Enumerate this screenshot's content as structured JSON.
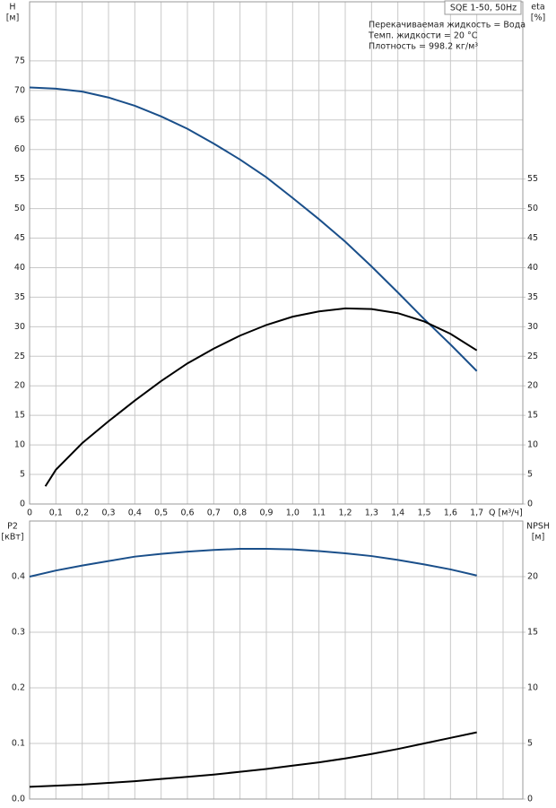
{
  "chart_data": [
    {
      "type": "line",
      "title": "SQE 1-50, 50Hz",
      "annotations": [
        "Перекачиваемая жидкость = Вода",
        "Темп. жидкости = 20 °C",
        "Плотность = 998.2 кг/м³"
      ],
      "ylabel": "H",
      "yunit": "[м]",
      "y2label": "eta",
      "y2unit": "[%]",
      "xlabel": "Q [м³/ч]",
      "xlim": [
        0,
        1.875
      ],
      "xticks": [
        0,
        {
          "value": 0.1,
          "label": "0,1"
        },
        {
          "value": 0.2,
          "label": "0,2"
        },
        {
          "value": 0.3,
          "label": "0,3"
        },
        {
          "value": 0.4,
          "label": "0,4"
        },
        {
          "value": 0.5,
          "label": "0,5"
        },
        {
          "value": 0.6,
          "label": "0,6"
        },
        {
          "value": 0.7,
          "label": "0,7"
        },
        {
          "value": 0.8,
          "label": "0,8"
        },
        {
          "value": 0.9,
          "label": "0,9"
        },
        {
          "value": 1.0,
          "label": "1,0"
        },
        {
          "value": 1.1,
          "label": "1,1"
        },
        {
          "value": 1.2,
          "label": "1,2"
        },
        {
          "value": 1.3,
          "label": "1,3"
        },
        {
          "value": 1.4,
          "label": "1,4"
        },
        {
          "value": 1.5,
          "label": "1,5"
        },
        {
          "value": 1.6,
          "label": "1,6"
        },
        {
          "value": 1.7,
          "label": "1,7"
        }
      ],
      "ylim": [
        0,
        85
      ],
      "yticks": [
        0,
        5,
        10,
        15,
        20,
        25,
        30,
        35,
        40,
        45,
        50,
        55,
        60,
        65,
        70,
        75
      ],
      "y2lim": [
        0,
        85
      ],
      "y2ticks": [
        0,
        5,
        10,
        15,
        20,
        25,
        30,
        35,
        40,
        45,
        50,
        55
      ],
      "grid": true,
      "series": [
        {
          "color": "#1a4f8a",
          "x": [
            0,
            0.1,
            0.2,
            0.3,
            0.4,
            0.5,
            0.6,
            0.7,
            0.8,
            0.9,
            1.0,
            1.1,
            1.2,
            1.3,
            1.4,
            1.5,
            1.6,
            1.7
          ],
          "values": [
            70.5,
            70.3,
            69.8,
            68.8,
            67.4,
            65.6,
            63.5,
            61,
            58.3,
            55.3,
            51.8,
            48.2,
            44.4,
            40.2,
            35.8,
            31.3,
            27,
            22.5
          ]
        },
        {
          "color": "#000000",
          "axis": "y2",
          "x": [
            0.06,
            0.1,
            0.2,
            0.3,
            0.4,
            0.5,
            0.6,
            0.7,
            0.8,
            0.9,
            1.0,
            1.1,
            1.2,
            1.3,
            1.4,
            1.5,
            1.6,
            1.7
          ],
          "values": [
            3,
            5.8,
            10.3,
            14,
            17.5,
            20.8,
            23.8,
            26.3,
            28.5,
            30.3,
            31.7,
            32.6,
            33.1,
            33,
            32.3,
            30.9,
            28.8,
            26
          ]
        }
      ]
    },
    {
      "type": "line",
      "ylabel": "P2",
      "yunit": "[кВт]",
      "y2label": "NPSH",
      "y2unit": "[м]",
      "xlim": [
        0,
        1.875
      ],
      "xgrid": [
        0.1,
        0.2,
        0.3,
        0.4,
        0.5,
        0.6,
        0.7,
        0.8,
        0.9,
        1.0,
        1.1,
        1.2,
        1.3,
        1.4,
        1.5,
        1.6,
        1.7,
        1.8
      ],
      "ylim": [
        0,
        0.5
      ],
      "yticks": [
        {
          "value": 0,
          "label": "0.0"
        },
        0.1,
        0.2,
        0.3,
        0.4
      ],
      "y2lim": [
        0,
        25
      ],
      "y2ticks": [
        0,
        5,
        10,
        15,
        20
      ],
      "grid": true,
      "series": [
        {
          "color": "#1a4f8a",
          "x": [
            0,
            0.1,
            0.2,
            0.3,
            0.4,
            0.5,
            0.6,
            0.7,
            0.8,
            0.9,
            1.0,
            1.1,
            1.2,
            1.3,
            1.4,
            1.5,
            1.6,
            1.7
          ],
          "values": [
            0.4,
            0.411,
            0.42,
            0.428,
            0.436,
            0.441,
            0.445,
            0.448,
            0.45,
            0.45,
            0.449,
            0.446,
            0.442,
            0.437,
            0.43,
            0.422,
            0.413,
            0.402
          ]
        },
        {
          "color": "#000000",
          "axis": "y2",
          "x": [
            0,
            0.1,
            0.2,
            0.3,
            0.4,
            0.5,
            0.6,
            0.7,
            0.8,
            0.9,
            1.0,
            1.1,
            1.2,
            1.3,
            1.4,
            1.5,
            1.6,
            1.7
          ],
          "values": [
            1.1,
            1.2,
            1.3,
            1.45,
            1.6,
            1.8,
            2.0,
            2.2,
            2.45,
            2.7,
            3.0,
            3.3,
            3.65,
            4.05,
            4.5,
            5.0,
            5.5,
            6.0
          ]
        }
      ]
    }
  ]
}
